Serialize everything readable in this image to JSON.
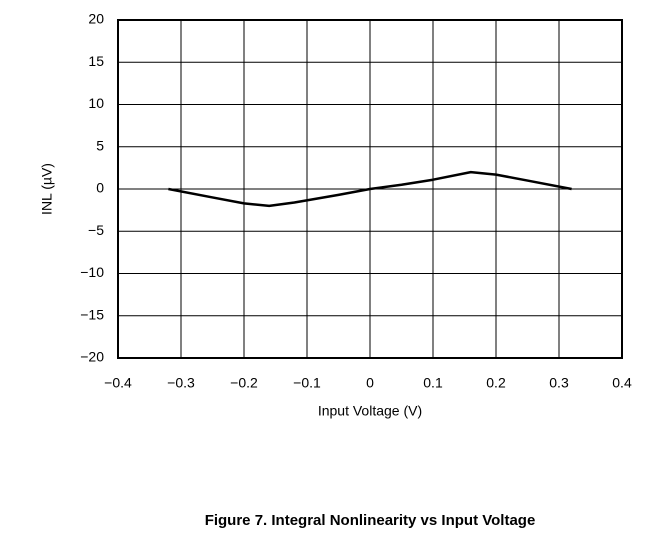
{
  "chart_data": {
    "type": "line",
    "title": "Figure 7. Integral Nonlinearity vs Input Voltage",
    "x_label": "Input Voltage (V)",
    "y_label": "INL (µV)",
    "x": [
      -0.32,
      -0.25,
      -0.2,
      -0.16,
      -0.12,
      -0.05,
      0,
      0.05,
      0.1,
      0.16,
      0.2,
      0.25,
      0.32
    ],
    "series": [
      {
        "name": "INL",
        "color": "#000000",
        "values": [
          0,
          -1,
          -1.7,
          -2,
          -1.6,
          -0.7,
          0,
          0.5,
          1.1,
          2,
          1.7,
          1,
          0
        ]
      }
    ],
    "xlim": [
      -0.4,
      0.4
    ],
    "ylim": [
      -20,
      20
    ],
    "xticks": [
      {
        "value": -0.4,
        "label": "−0.4"
      },
      {
        "value": -0.3,
        "label": "−0.3"
      },
      {
        "value": -0.2,
        "label": "−0.2"
      },
      {
        "value": -0.1,
        "label": "−0.1"
      },
      0,
      0.1,
      0.2,
      0.3,
      0.4
    ],
    "yticks": [
      {
        "value": -20,
        "label": "−20"
      },
      {
        "value": -15,
        "label": "−15"
      },
      {
        "value": -10,
        "label": "−10"
      },
      {
        "value": -5,
        "label": "−5"
      },
      0,
      5,
      10,
      15,
      20
    ],
    "grid": true
  }
}
